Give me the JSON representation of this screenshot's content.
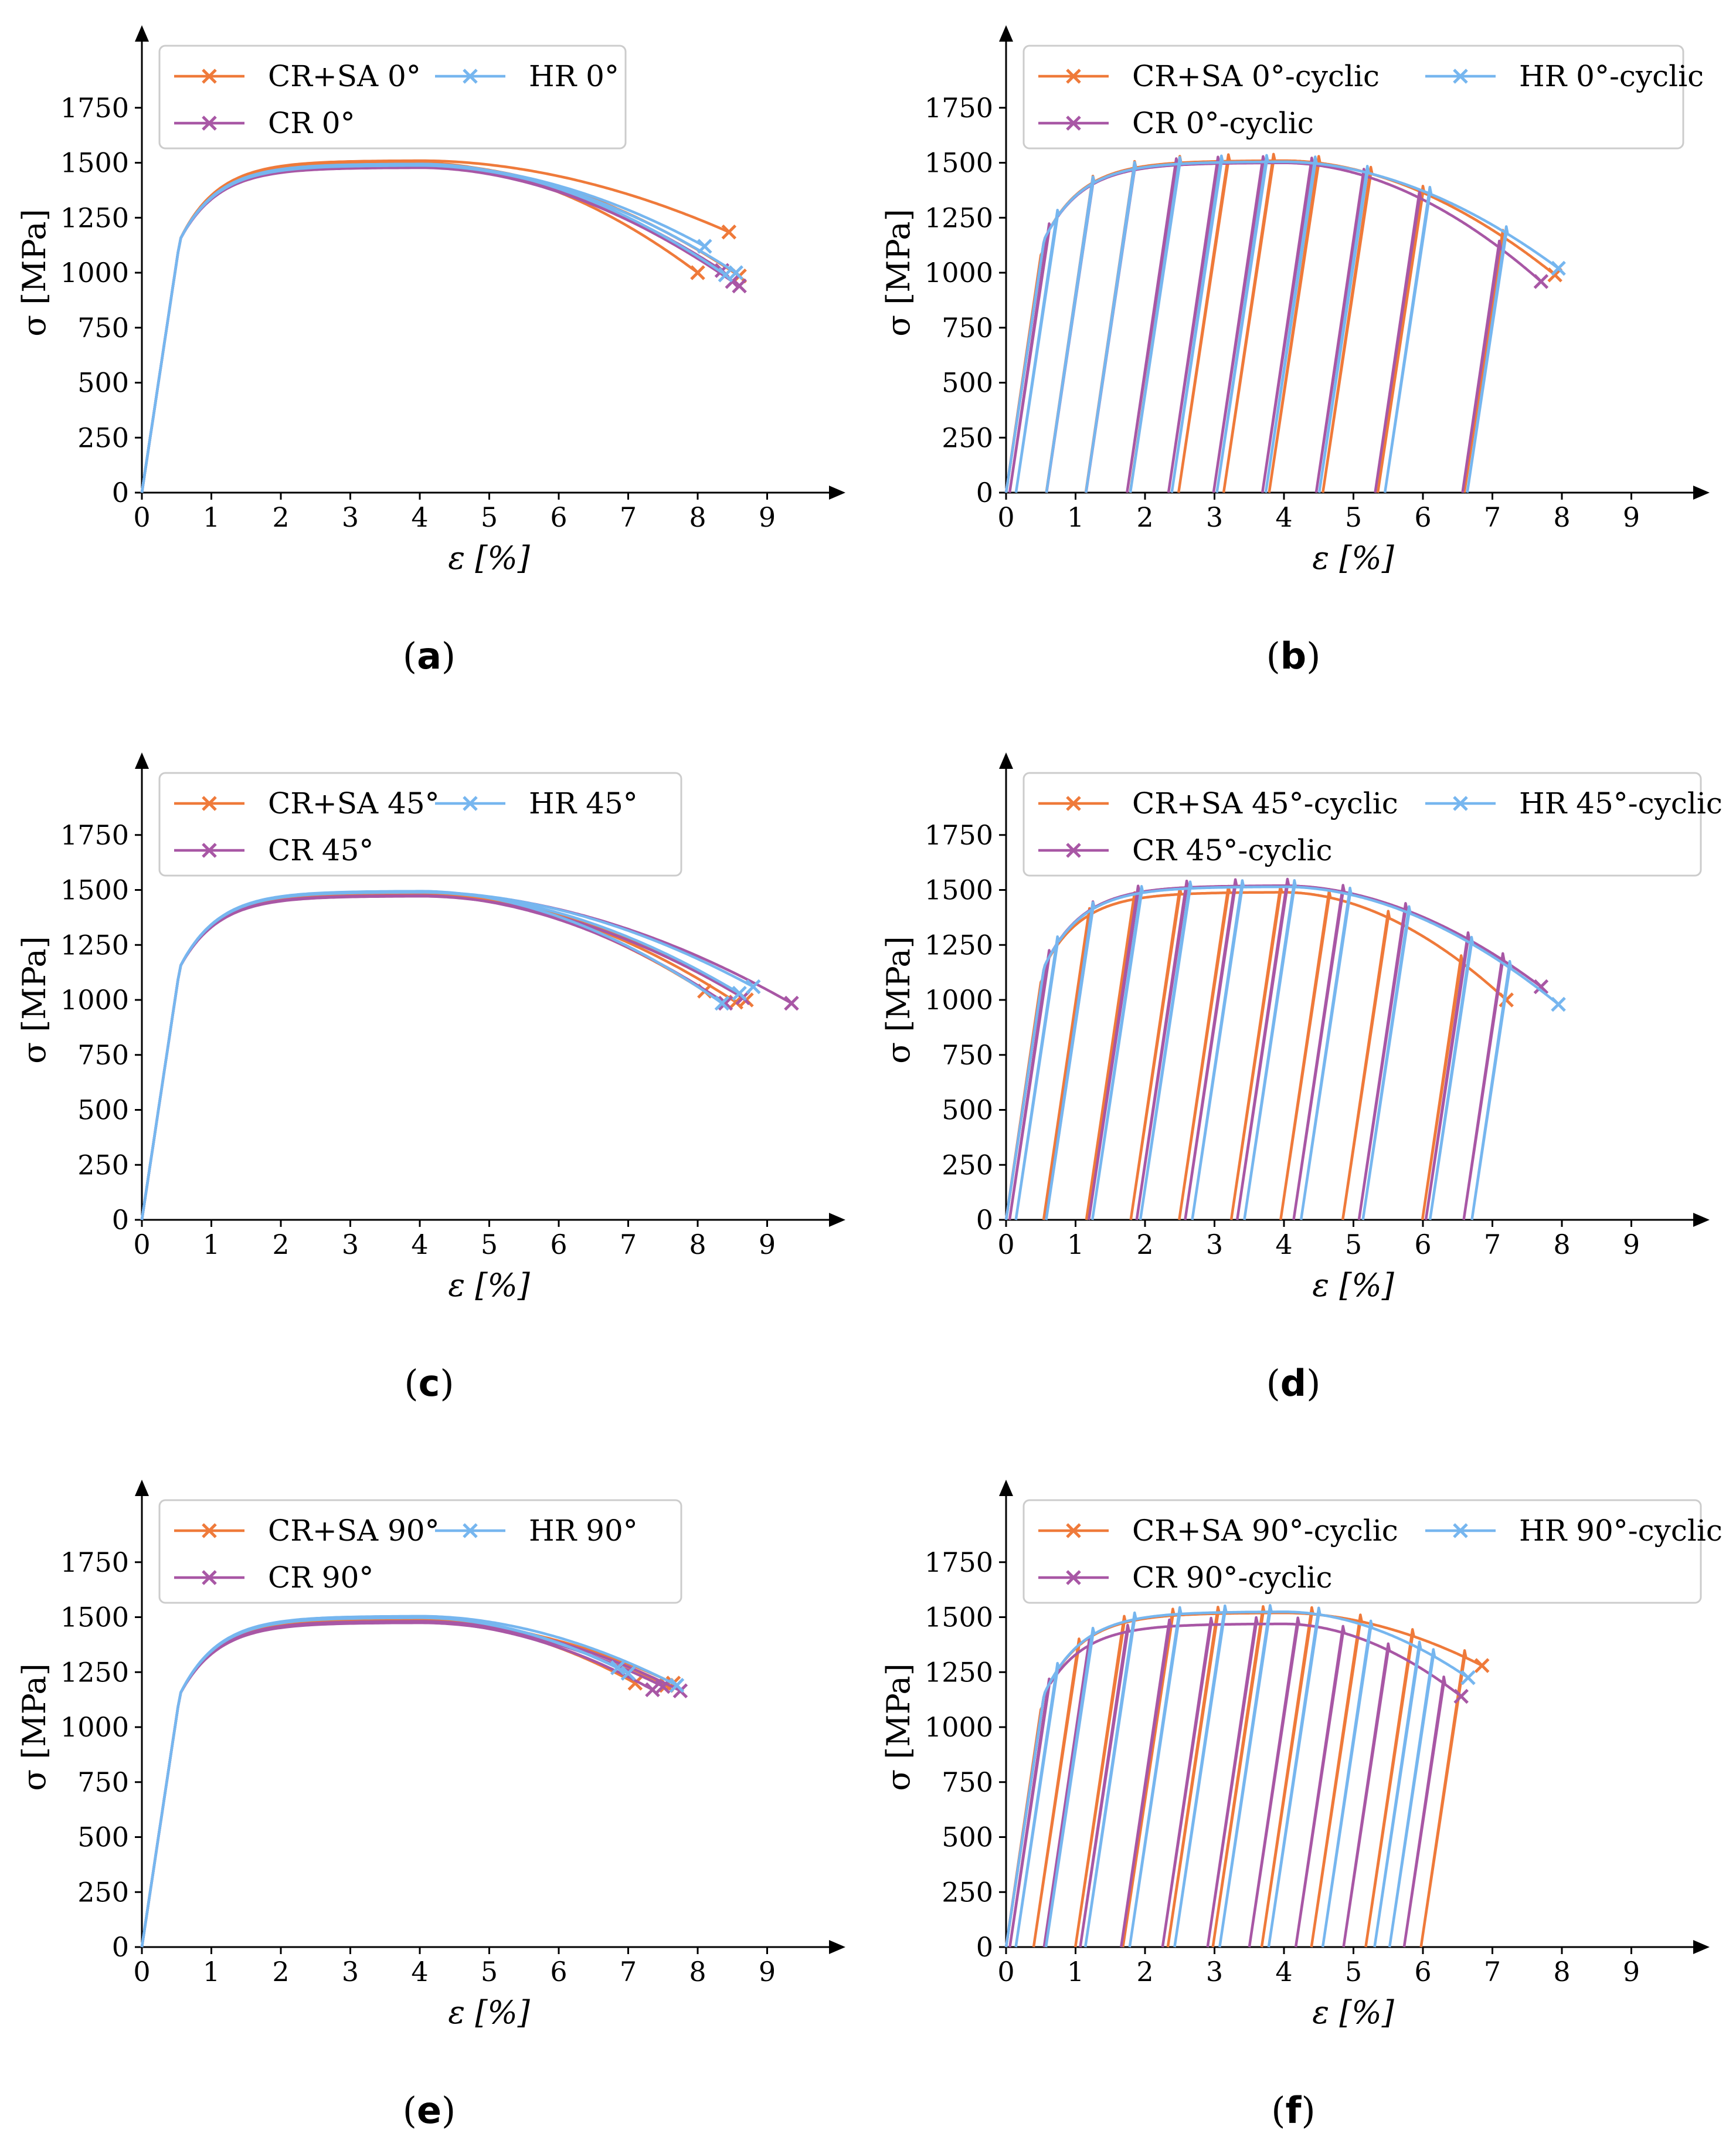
{
  "figure": {
    "colors": {
      "cr_sa": "#ef7a3a",
      "cr": "#a857a5",
      "hr": "#76b6ef",
      "axis": "#000000"
    },
    "panels": [
      {
        "id": "a",
        "caption": "a",
        "type": "monotonic",
        "legend": [
          "CR+SA 0°",
          "CR 0°",
          "HR 0°"
        ],
        "chart_data": {
          "type": "line",
          "xlabel": "ε [%]",
          "ylabel": "σ [MPa]",
          "xticks": [
            "0",
            "1",
            "2",
            "3",
            "4",
            "5",
            "6",
            "7",
            "8",
            "9"
          ],
          "yticks": [
            "0",
            "250",
            "500",
            "750",
            "1000",
            "1250",
            "1500",
            "1750"
          ],
          "xlim": [
            0,
            10
          ],
          "ylim": [
            0,
            2000
          ],
          "series": [
            {
              "name": "CR+SA 0°",
              "color": "cr_sa",
              "runs": [
                {
                  "peak": 1500,
                  "fail": [
                    8.0,
                    1000
                  ]
                },
                {
                  "peak": 1510,
                  "fail": [
                    8.45,
                    1185
                  ]
                },
                {
                  "peak": 1495,
                  "fail": [
                    8.6,
                    985
                  ]
                }
              ]
            },
            {
              "name": "CR 0°",
              "color": "cr",
              "runs": [
                {
                  "peak": 1480,
                  "fail": [
                    8.35,
                    1010
                  ]
                },
                {
                  "peak": 1485,
                  "fail": [
                    8.6,
                    940
                  ]
                },
                {
                  "peak": 1478,
                  "fail": [
                    8.5,
                    960
                  ]
                }
              ]
            },
            {
              "name": "HR 0°",
              "color": "hr",
              "runs": [
                {
                  "peak": 1490,
                  "fail": [
                    8.1,
                    1120
                  ]
                },
                {
                  "peak": 1495,
                  "fail": [
                    8.4,
                    990
                  ]
                },
                {
                  "peak": 1488,
                  "fail": [
                    8.55,
                    1000
                  ]
                }
              ]
            }
          ]
        }
      },
      {
        "id": "b",
        "caption": "b",
        "type": "cyclic",
        "legend": [
          "CR+SA 0°-cyclic",
          "CR 0°-cyclic",
          "HR 0°-cyclic"
        ],
        "chart_data": {
          "type": "line",
          "xlabel": "ε [%]",
          "ylabel": "σ [MPa]",
          "xticks": [
            "0",
            "1",
            "2",
            "3",
            "4",
            "5",
            "6",
            "7",
            "8",
            "9"
          ],
          "yticks": [
            "0",
            "250",
            "500",
            "750",
            "1000",
            "1250",
            "1500",
            "1750"
          ],
          "xlim": [
            0,
            10
          ],
          "ylim": [
            0,
            2000
          ],
          "series": [
            {
              "name": "CR+SA 0°-cyclic",
              "color": "cr_sa",
              "peak": 1510,
              "fail": [
                7.9,
                990
              ],
              "unloads": [
                1.25,
                1.85,
                2.5,
                3.2,
                3.85,
                4.5,
                5.25,
                6.0,
                7.15
              ]
            },
            {
              "name": "CR 0°-cyclic",
              "color": "cr",
              "peak": 1500,
              "fail": [
                7.7,
                960
              ],
              "unloads": [
                1.25,
                1.85,
                2.45,
                3.05,
                3.7,
                4.4,
                5.15,
                5.95,
                7.1
              ]
            },
            {
              "name": "HR 0°-cyclic",
              "color": "hr",
              "peak": 1505,
              "fail": [
                7.95,
                1020
              ],
              "unloads": [
                1.25,
                1.85,
                2.5,
                3.1,
                3.75,
                4.45,
                5.2,
                6.1,
                7.2
              ]
            }
          ]
        }
      },
      {
        "id": "c",
        "caption": "c",
        "type": "monotonic",
        "legend": [
          "CR+SA 45°",
          "CR 45°",
          "HR 45°"
        ],
        "chart_data": {
          "type": "line",
          "xlabel": "ε [%]",
          "ylabel": "σ [MPa]",
          "xticks": [
            "0",
            "1",
            "2",
            "3",
            "4",
            "5",
            "6",
            "7",
            "8",
            "9"
          ],
          "yticks": [
            "0",
            "250",
            "500",
            "750",
            "1000",
            "1250",
            "1500",
            "1750"
          ],
          "xlim": [
            0,
            10
          ],
          "ylim": [
            0,
            2000
          ],
          "series": [
            {
              "name": "CR+SA 45°",
              "color": "cr_sa",
              "runs": [
                {
                  "peak": 1480,
                  "fail": [
                    8.1,
                    1040
                  ]
                },
                {
                  "peak": 1485,
                  "fail": [
                    8.55,
                    990
                  ]
                },
                {
                  "peak": 1478,
                  "fail": [
                    8.7,
                    1000
                  ]
                }
              ]
            },
            {
              "name": "CR 45°",
              "color": "cr",
              "runs": [
                {
                  "peak": 1475,
                  "fail": [
                    8.4,
                    985
                  ]
                },
                {
                  "peak": 1490,
                  "fail": [
                    9.35,
                    985
                  ]
                },
                {
                  "peak": 1472,
                  "fail": [
                    8.65,
                    1010
                  ]
                }
              ]
            },
            {
              "name": "HR 45°",
              "color": "hr",
              "runs": [
                {
                  "peak": 1495,
                  "fail": [
                    8.35,
                    985
                  ]
                },
                {
                  "peak": 1492,
                  "fail": [
                    8.8,
                    1060
                  ]
                },
                {
                  "peak": 1490,
                  "fail": [
                    8.6,
                    1030
                  ]
                }
              ]
            }
          ]
        }
      },
      {
        "id": "d",
        "caption": "d",
        "type": "cyclic",
        "legend": [
          "CR+SA 45°-cyclic",
          "CR 45°-cyclic",
          "HR 45°-cyclic"
        ],
        "chart_data": {
          "type": "line",
          "xlabel": "ε [%]",
          "ylabel": "σ [MPa]",
          "xticks": [
            "0",
            "1",
            "2",
            "3",
            "4",
            "5",
            "6",
            "7",
            "8",
            "9"
          ],
          "yticks": [
            "0",
            "250",
            "500",
            "750",
            "1000",
            "1250",
            "1500",
            "1750"
          ],
          "xlim": [
            0,
            10
          ],
          "ylim": [
            0,
            2000
          ],
          "series": [
            {
              "name": "CR+SA 45°-cyclic",
              "color": "cr_sa",
              "peak": 1490,
              "fail": [
                7.2,
                1000
              ],
              "unloads": [
                1.2,
                1.85,
                2.5,
                3.2,
                3.95,
                4.65,
                5.5,
                6.55
              ]
            },
            {
              "name": "CR 45°-cyclic",
              "color": "cr",
              "peak": 1520,
              "fail": [
                7.7,
                1060
              ],
              "unloads": [
                1.25,
                1.9,
                2.6,
                3.3,
                4.05,
                4.85,
                5.75,
                6.65,
                7.15
              ]
            },
            {
              "name": "HR 45°-cyclic",
              "color": "hr",
              "peak": 1515,
              "fail": [
                7.95,
                980
              ],
              "unloads": [
                1.25,
                1.95,
                2.65,
                3.4,
                4.15,
                4.95,
                5.8,
                6.7,
                7.25
              ]
            }
          ]
        }
      },
      {
        "id": "e",
        "caption": "e",
        "type": "monotonic",
        "legend": [
          "CR+SA 90°",
          "CR 90°",
          "HR 90°"
        ],
        "chart_data": {
          "type": "line",
          "xlabel": "ε [%]",
          "ylabel": "σ [MPa]",
          "xticks": [
            "0",
            "1",
            "2",
            "3",
            "4",
            "5",
            "6",
            "7",
            "8",
            "9"
          ],
          "yticks": [
            "0",
            "250",
            "500",
            "750",
            "1000",
            "1250",
            "1500",
            "1750"
          ],
          "xlim": [
            0,
            10
          ],
          "ylim": [
            0,
            2000
          ],
          "series": [
            {
              "name": "CR+SA 90°",
              "color": "cr_sa",
              "runs": [
                {
                  "peak": 1485,
                  "fail": [
                    7.1,
                    1200
                  ]
                },
                {
                  "peak": 1490,
                  "fail": [
                    7.55,
                    1190
                  ]
                },
                {
                  "peak": 1482,
                  "fail": [
                    7.65,
                    1200
                  ]
                }
              ]
            },
            {
              "name": "CR 90°",
              "color": "cr",
              "runs": [
                {
                  "peak": 1478,
                  "fail": [
                    7.35,
                    1170
                  ]
                },
                {
                  "peak": 1482,
                  "fail": [
                    7.75,
                    1165
                  ]
                },
                {
                  "peak": 1475,
                  "fail": [
                    7.5,
                    1185
                  ]
                }
              ]
            },
            {
              "name": "HR 90°",
              "color": "hr",
              "runs": [
                {
                  "peak": 1500,
                  "fail": [
                    6.85,
                    1270
                  ]
                },
                {
                  "peak": 1505,
                  "fail": [
                    7.7,
                    1190
                  ]
                },
                {
                  "peak": 1498,
                  "fail": [
                    7.0,
                    1245
                  ]
                }
              ]
            }
          ]
        }
      },
      {
        "id": "f",
        "caption": "f",
        "type": "cyclic",
        "legend": [
          "CR+SA 90°-cyclic",
          "CR 90°-cyclic",
          "HR 90°-cyclic"
        ],
        "chart_data": {
          "type": "line",
          "xlabel": "ε [%]",
          "ylabel": "σ [MPa]",
          "xticks": [
            "0",
            "1",
            "2",
            "3",
            "4",
            "5",
            "6",
            "7",
            "8",
            "9"
          ],
          "yticks": [
            "0",
            "250",
            "500",
            "750",
            "1000",
            "1250",
            "1500",
            "1750"
          ],
          "xlim": [
            0,
            10
          ],
          "ylim": [
            0,
            2000
          ],
          "series": [
            {
              "name": "CR+SA 90°-cyclic",
              "color": "cr_sa",
              "peak": 1520,
              "fail": [
                6.85,
                1280
              ],
              "unloads": [
                1.05,
                1.7,
                2.4,
                3.05,
                3.7,
                4.4,
                5.1,
                5.85,
                6.6
              ]
            },
            {
              "name": "CR 90°-cyclic",
              "color": "cr",
              "peak": 1470,
              "fail": [
                6.55,
                1140
              ],
              "unloads": [
                1.2,
                1.75,
                2.35,
                2.95,
                3.6,
                4.2,
                4.85,
                5.5,
                6.3
              ]
            },
            {
              "name": "HR 90°-cyclic",
              "color": "hr",
              "peak": 1525,
              "fail": [
                6.65,
                1225
              ],
              "unloads": [
                1.25,
                1.85,
                2.5,
                3.15,
                3.8,
                4.5,
                5.25,
                5.95,
                6.15
              ]
            }
          ]
        }
      }
    ]
  }
}
